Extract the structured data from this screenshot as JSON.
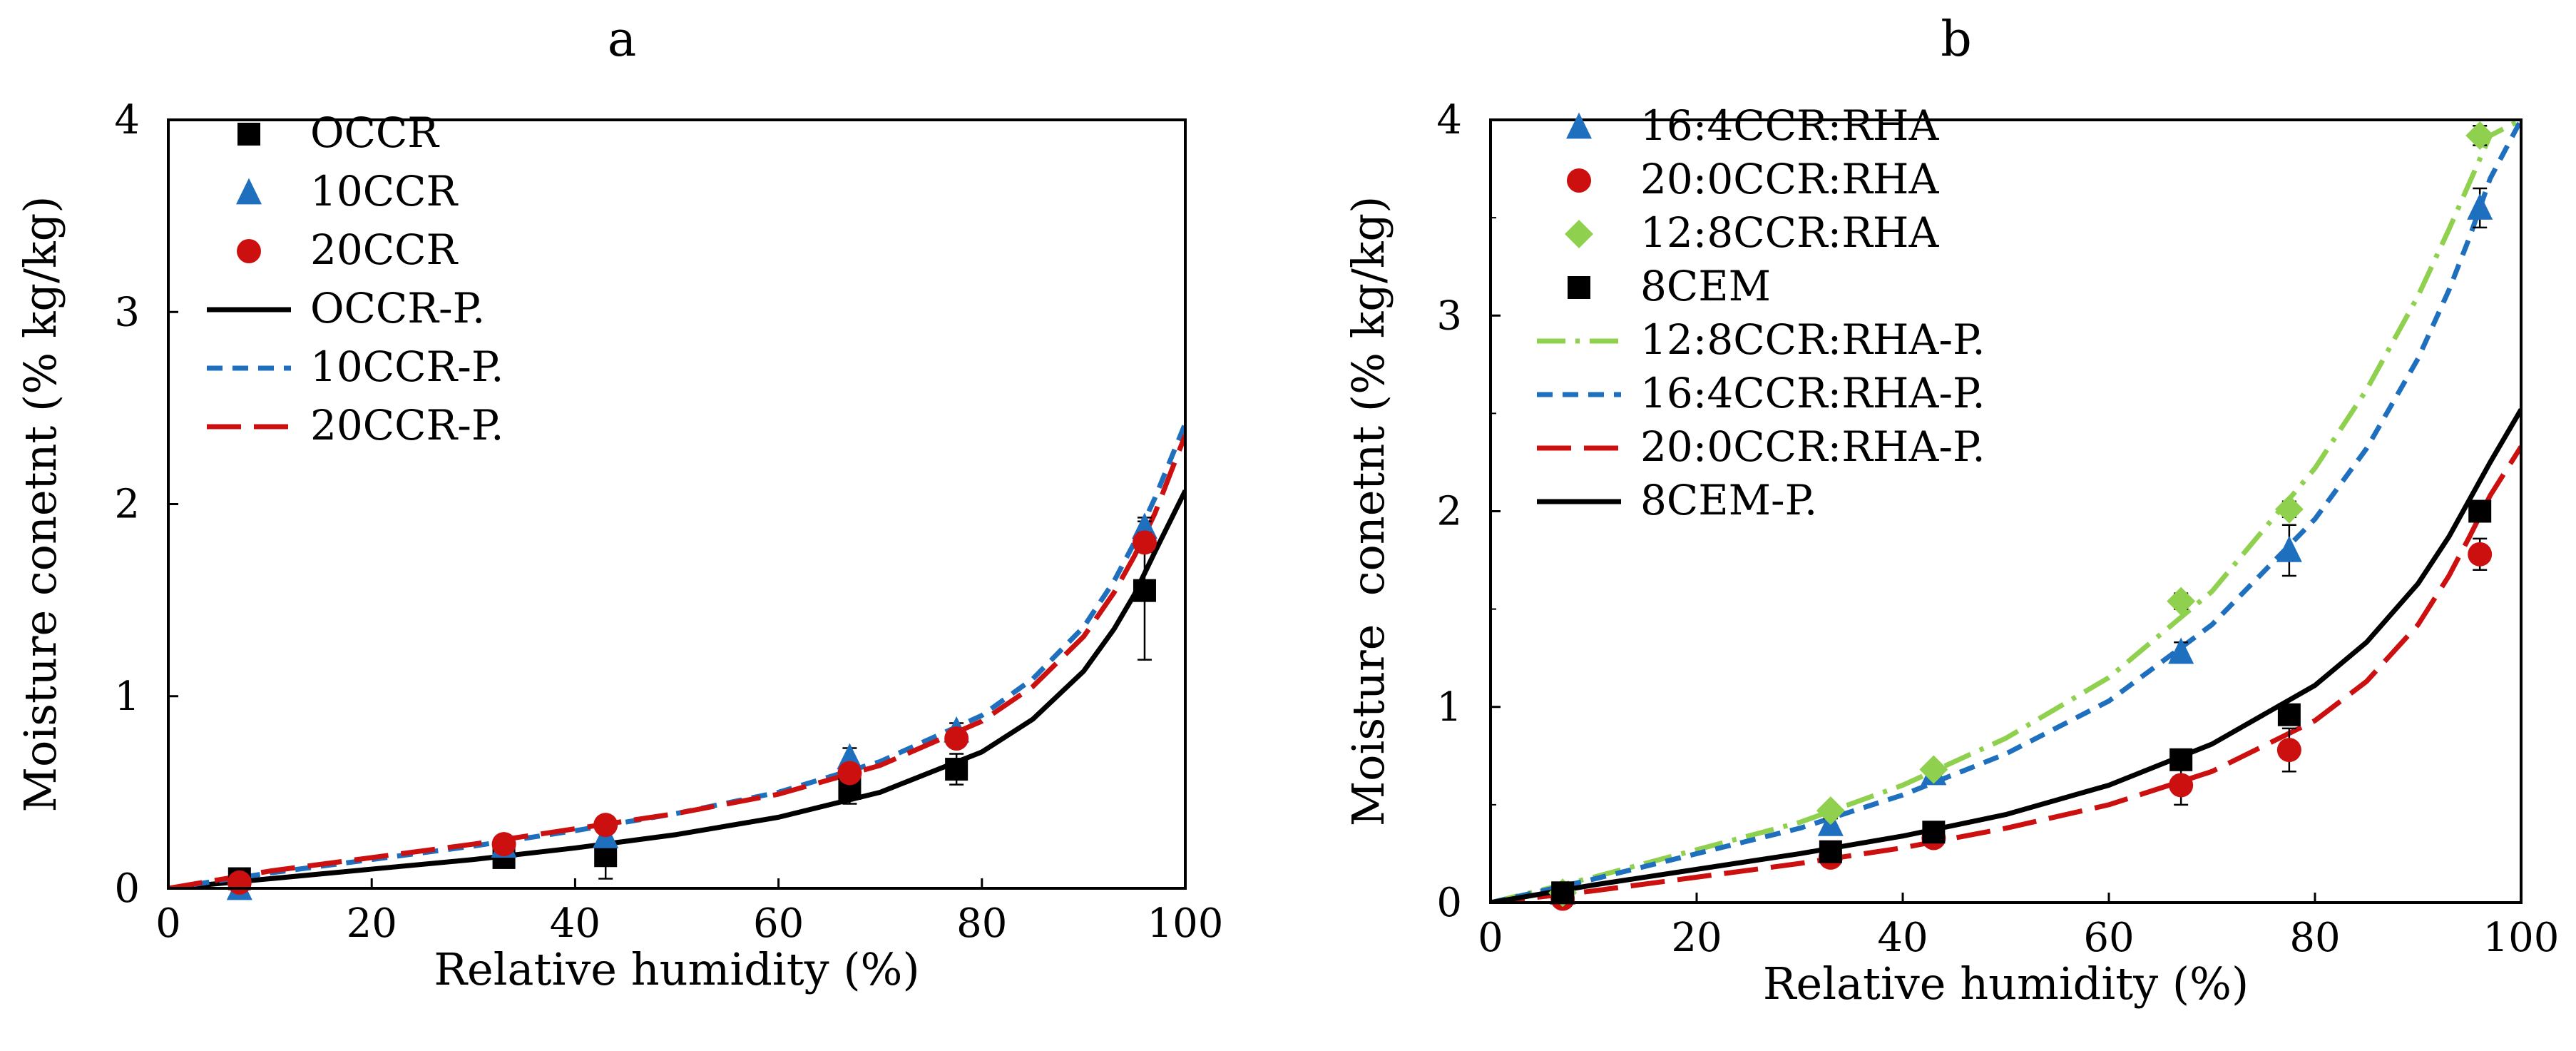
{
  "chart_data": [
    {
      "type": "scatter",
      "title": "a",
      "xlabel": "Relative humidity (%)",
      "ylabel": "Moisture conetnt (% kg/kg)",
      "xlim": [
        0,
        100
      ],
      "ylim": [
        0,
        4
      ],
      "x_ticks": [
        "0",
        "20",
        "40",
        "60",
        "80",
        "100"
      ],
      "y_ticks": [
        "0",
        "1",
        "2",
        "3",
        "4"
      ],
      "legend_position": "top-left",
      "series": [
        {
          "name": "OCCR",
          "kind": "marker",
          "marker": "square",
          "color": "#000000",
          "x": [
            7,
            33,
            43,
            67,
            77.5,
            96
          ],
          "y": [
            0.05,
            0.16,
            0.17,
            0.52,
            0.62,
            1.55
          ],
          "error": [
            0.03,
            0.03,
            0.12,
            0.08,
            0.08,
            0.36
          ]
        },
        {
          "name": "10CCR",
          "kind": "marker",
          "marker": "triangle",
          "color": "#1f6fbf",
          "x": [
            7,
            33,
            43,
            67,
            77.5,
            96
          ],
          "y": [
            0.0,
            0.22,
            0.27,
            0.68,
            0.82,
            1.88
          ],
          "error": [
            0.0,
            0.02,
            0.02,
            0.05,
            0.04,
            0.05
          ]
        },
        {
          "name": "20CCR",
          "kind": "marker",
          "marker": "circle",
          "color": "#cc1010",
          "x": [
            7,
            33,
            43,
            67,
            77.5,
            96
          ],
          "y": [
            0.03,
            0.23,
            0.33,
            0.6,
            0.78,
            1.8
          ],
          "error": [
            0.02,
            0.02,
            0.03,
            0.04,
            0.04,
            0.05
          ]
        },
        {
          "name": "OCCR-P.",
          "kind": "line",
          "dash": "solid",
          "color": "#000000",
          "x": [
            0,
            10,
            20,
            30,
            40,
            50,
            60,
            70,
            80,
            85,
            90,
            93,
            95,
            97,
            100
          ],
          "y": [
            0,
            0.05,
            0.1,
            0.15,
            0.21,
            0.28,
            0.37,
            0.5,
            0.71,
            0.88,
            1.13,
            1.35,
            1.53,
            1.75,
            2.07
          ]
        },
        {
          "name": "10CCR-P.",
          "kind": "line",
          "dash": "short",
          "color": "#1f6fbf",
          "x": [
            0,
            10,
            20,
            30,
            40,
            50,
            60,
            70,
            80,
            85,
            90,
            93,
            95,
            97,
            100
          ],
          "y": [
            0,
            0.08,
            0.15,
            0.22,
            0.3,
            0.39,
            0.5,
            0.66,
            0.9,
            1.09,
            1.36,
            1.6,
            1.8,
            2.03,
            2.42
          ]
        },
        {
          "name": "20CCR-P.",
          "kind": "line",
          "dash": "long",
          "color": "#cc1010",
          "x": [
            0,
            10,
            20,
            30,
            40,
            50,
            60,
            70,
            80,
            85,
            90,
            93,
            95,
            97,
            100
          ],
          "y": [
            0,
            0.09,
            0.16,
            0.23,
            0.31,
            0.39,
            0.49,
            0.64,
            0.87,
            1.05,
            1.31,
            1.54,
            1.73,
            1.95,
            2.36
          ]
        }
      ]
    },
    {
      "type": "scatter",
      "title": "b",
      "xlabel": "Relative humidity (%)",
      "ylabel": "Moisture  conetnt (% kg/kg)",
      "xlim": [
        0,
        100
      ],
      "ylim": [
        0,
        4
      ],
      "x_ticks": [
        "0",
        "20",
        "40",
        "60",
        "80",
        "100"
      ],
      "y_ticks": [
        "0",
        "1",
        "2",
        "3",
        "4"
      ],
      "legend_position": "top-left",
      "series": [
        {
          "name": "16:4CCR:RHA",
          "kind": "marker",
          "marker": "triangle",
          "color": "#1f6fbf",
          "x": [
            7,
            33,
            43,
            67,
            77.5,
            96
          ],
          "y": [
            0.05,
            0.4,
            0.66,
            1.28,
            1.8,
            3.55
          ],
          "error": [
            0.02,
            0.03,
            0.03,
            0.05,
            0.13,
            0.1
          ]
        },
        {
          "name": "20:0CCR:RHA",
          "kind": "marker",
          "marker": "circle",
          "color": "#cc1010",
          "x": [
            7,
            33,
            43,
            67,
            77.5,
            96
          ],
          "y": [
            0.02,
            0.23,
            0.33,
            0.6,
            0.78,
            1.78
          ],
          "error": [
            0.02,
            0.03,
            0.03,
            0.1,
            0.11,
            0.08
          ]
        },
        {
          "name": "12:8CCR:RHA",
          "kind": "marker",
          "marker": "diamond",
          "color": "#8fd14f",
          "x": [
            7,
            33,
            43,
            67,
            77.5,
            96
          ],
          "y": [
            0.05,
            0.47,
            0.68,
            1.54,
            2.01,
            3.92
          ],
          "error": [
            0.02,
            0.02,
            0.02,
            0.04,
            0.04,
            0.05
          ]
        },
        {
          "name": "8CEM",
          "kind": "marker",
          "marker": "square",
          "color": "#000000",
          "x": [
            7,
            33,
            43,
            67,
            77.5,
            96
          ],
          "y": [
            0.05,
            0.26,
            0.36,
            0.73,
            0.96,
            2.0
          ],
          "error": [
            0.02,
            0.02,
            0.02,
            0.03,
            0.03,
            0.04
          ]
        },
        {
          "name": "12:8CCR:RHA-P.",
          "kind": "line",
          "dash": "dashdot",
          "color": "#8fd14f",
          "x": [
            0,
            10,
            20,
            30,
            40,
            50,
            60,
            70,
            80,
            85,
            90,
            93,
            95,
            97,
            100
          ],
          "y": [
            0,
            0.13,
            0.27,
            0.41,
            0.6,
            0.84,
            1.15,
            1.59,
            2.22,
            2.62,
            3.1,
            3.44,
            3.68,
            3.92,
            4.0
          ]
        },
        {
          "name": "16:4CCR:RHA-P.",
          "kind": "line",
          "dash": "short",
          "color": "#1f6fbf",
          "x": [
            0,
            10,
            20,
            30,
            40,
            50,
            60,
            70,
            80,
            85,
            90,
            93,
            95,
            97,
            100
          ],
          "y": [
            0,
            0.12,
            0.25,
            0.38,
            0.55,
            0.76,
            1.03,
            1.42,
            1.96,
            2.32,
            2.78,
            3.13,
            3.4,
            3.7,
            4.0
          ]
        },
        {
          "name": "20:0CCR:RHA-P.",
          "kind": "line",
          "dash": "long",
          "color": "#cc1010",
          "x": [
            0,
            10,
            20,
            30,
            40,
            50,
            60,
            70,
            80,
            85,
            90,
            93,
            95,
            97,
            100
          ],
          "y": [
            0,
            0.06,
            0.13,
            0.2,
            0.28,
            0.38,
            0.5,
            0.67,
            0.93,
            1.13,
            1.42,
            1.67,
            1.87,
            2.08,
            2.33
          ]
        },
        {
          "name": "8CEM-P.",
          "kind": "line",
          "dash": "solid",
          "color": "#000000",
          "x": [
            0,
            10,
            20,
            30,
            40,
            50,
            60,
            70,
            80,
            85,
            90,
            93,
            95,
            97,
            100
          ],
          "y": [
            0,
            0.09,
            0.17,
            0.25,
            0.34,
            0.45,
            0.6,
            0.81,
            1.11,
            1.33,
            1.63,
            1.87,
            2.06,
            2.25,
            2.52
          ]
        }
      ]
    }
  ]
}
